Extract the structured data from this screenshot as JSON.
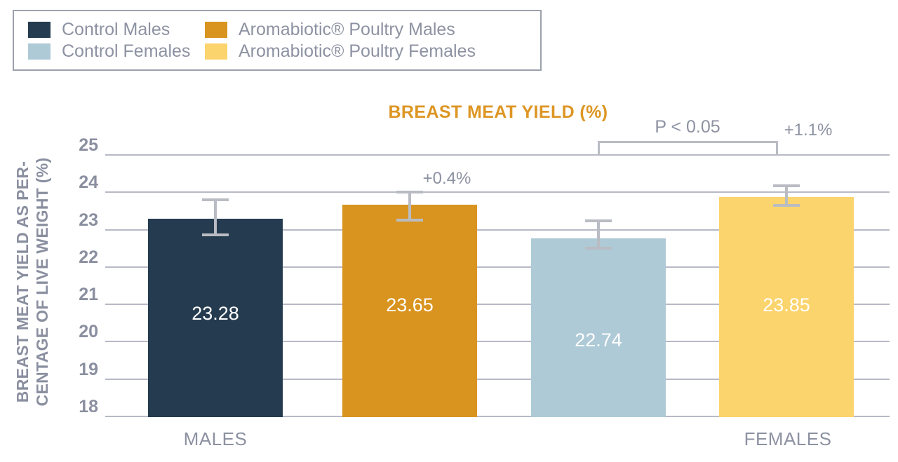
{
  "legend": {
    "items": [
      {
        "label": "Control Males",
        "color": "#253b50"
      },
      {
        "label": "Aromabiotic® Poultry Males",
        "color": "#d9941f"
      },
      {
        "label": "Control Females",
        "color": "#aecad7"
      },
      {
        "label": "Aromabiotic® Poultry Females",
        "color": "#fcd46d"
      }
    ]
  },
  "chart_data": {
    "type": "bar",
    "title": "BREAST MEAT YIELD (%)",
    "title_color": "#dd9623",
    "ylabel_lines": [
      "BREAST MEAT YIELD AS PER-",
      "CENTAGE OF LIVE WEIGHT (%)"
    ],
    "ylim": [
      18,
      25
    ],
    "yticks": [
      "25",
      "24",
      "23",
      "22",
      "21",
      "20",
      "19",
      "18"
    ],
    "grid": true,
    "legend_position": "top-left",
    "x_group_labels": [
      "MALES",
      "FEMALES"
    ],
    "bars": [
      {
        "series": "Control Males",
        "group": "MALES",
        "value": 23.28,
        "value_label": "23.28",
        "color": "#253b50",
        "error_plus": 0.53,
        "error_minus": 0.48
      },
      {
        "series": "Aromabiotic® Poultry Males",
        "group": "MALES",
        "value": 23.65,
        "value_label": "23.65",
        "color": "#d9941f",
        "error_plus": 0.38,
        "error_minus": 0.45
      },
      {
        "series": "Control Females",
        "group": "FEMALES",
        "value": 22.74,
        "value_label": "22.74",
        "color": "#aecad7",
        "error_plus": 0.52,
        "error_minus": 0.3
      },
      {
        "series": "Aromabiotic® Poultry Females",
        "group": "FEMALES",
        "value": 23.85,
        "value_label": "23.85",
        "color": "#fcd46d",
        "error_plus": 0.34,
        "error_minus": 0.26
      }
    ],
    "annotations": [
      {
        "text": "+0.4%"
      },
      {
        "text": "P < 0.05"
      },
      {
        "text": "+1.1%"
      }
    ],
    "error_bar_color": "#b9bcc2",
    "gridline_color": "#9fa3b2"
  }
}
